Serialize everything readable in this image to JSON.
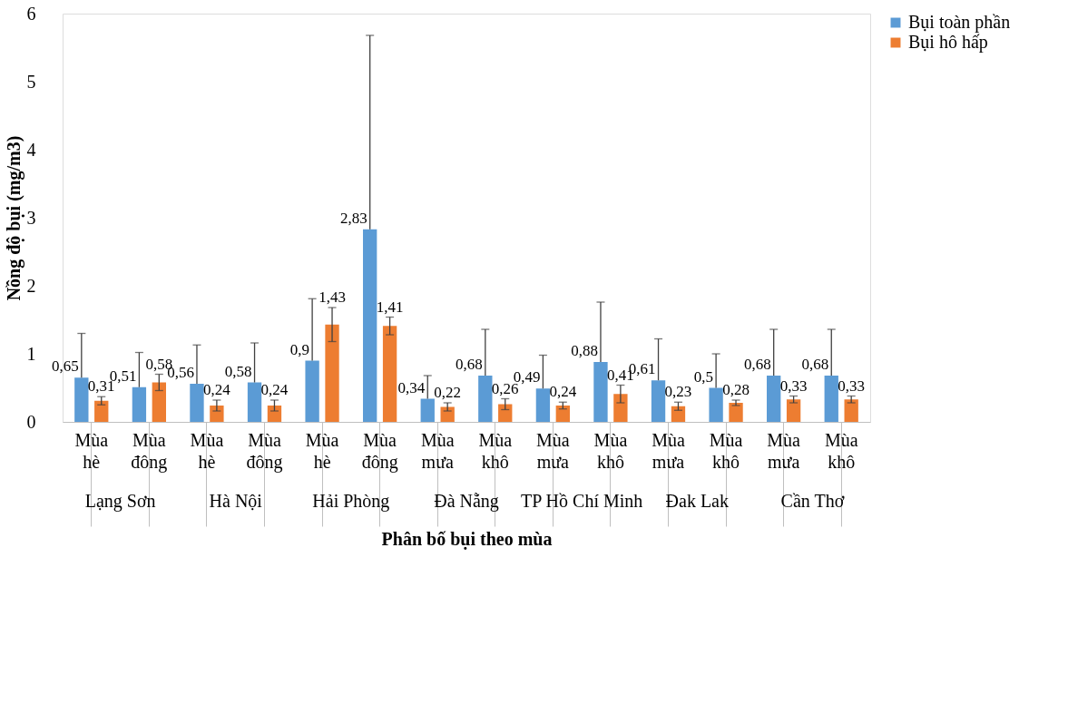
{
  "chart_data": {
    "type": "bar",
    "xlabel": "Phân bố bụi theo mùa",
    "ylabel": "Nồng độ bụi (mg/m3)",
    "categories": [
      "Mùa hè",
      "Mùa đông",
      "Mùa hè",
      "Mùa đông",
      "Mùa hè",
      "Mùa đông",
      "Mùa mưa",
      "Mùa khô",
      "Mùa mưa",
      "Mùa khô",
      "Mùa mưa",
      "Mùa khô",
      "Mùa mưa",
      "Mùa khô"
    ],
    "annotations": [
      "Lạng Sơn",
      "Hà Nội",
      "Hải Phòng",
      "Đà Nẵng",
      "TP Hồ Chí Minh",
      "Đak Lak",
      "Cần Thơ"
    ],
    "series": [
      {
        "name": "Bụi toàn phần",
        "color": "#5b9bd5",
        "values": [
          0.65,
          0.51,
          0.56,
          0.58,
          0.9,
          2.83,
          0.34,
          0.68,
          0.49,
          0.88,
          0.61,
          0.5,
          0.68,
          0.68
        ],
        "value_labels": [
          "0,65",
          "0,51",
          "0,56",
          "0,58",
          "0,9",
          "2,83",
          "0,34",
          "0,68",
          "0,49",
          "0,88",
          "0,61",
          "0,5",
          "0,68",
          "0,68"
        ],
        "errors": [
          [
            0.65,
            1.3
          ],
          [
            0.51,
            1.02
          ],
          [
            0.56,
            1.13
          ],
          [
            0.58,
            1.16
          ],
          [
            0.9,
            1.81
          ],
          [
            2.83,
            5.68
          ],
          [
            0.34,
            0.68
          ],
          [
            0.68,
            1.36
          ],
          [
            0.49,
            0.98
          ],
          [
            0.88,
            1.76
          ],
          [
            0.61,
            1.22
          ],
          [
            0.5,
            1.0
          ],
          [
            0.68,
            1.36
          ],
          [
            0.68,
            1.36
          ]
        ]
      },
      {
        "name": "Bụi hô hấp",
        "color": "#ed7d31",
        "values": [
          0.31,
          0.58,
          0.24,
          0.24,
          1.43,
          1.41,
          0.22,
          0.26,
          0.24,
          0.41,
          0.23,
          0.28,
          0.33,
          0.33
        ],
        "value_labels": [
          "0,31",
          "0,58",
          "0,24",
          "0,24",
          "1,43",
          "1,41",
          "0,22",
          "0,26",
          "0,24",
          "0,41",
          "0,23",
          "0,28",
          "0,33",
          "0,33"
        ],
        "errors": [
          0.06,
          0.12,
          0.08,
          0.08,
          0.25,
          0.13,
          0.06,
          0.08,
          0.05,
          0.13,
          0.06,
          0.04,
          0.05,
          0.05
        ]
      }
    ],
    "ylim": [
      0,
      6
    ],
    "yticks": [
      0,
      1,
      2,
      3,
      4,
      5,
      6
    ],
    "grid": false,
    "legend": "top right"
  }
}
